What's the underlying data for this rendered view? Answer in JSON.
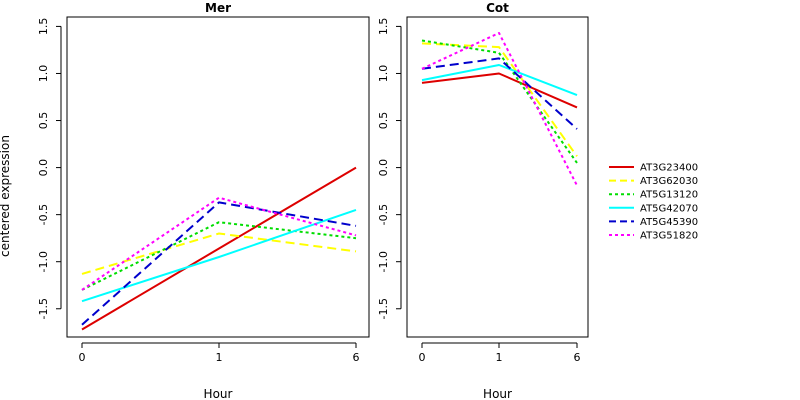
{
  "chart_data": {
    "type": "line",
    "ylabel": "centered expression",
    "xlabel": "Hour",
    "categories": [
      "0",
      "1",
      "6"
    ],
    "ylim": [
      -1.8,
      1.6
    ],
    "yticks": [
      -1.5,
      -1.0,
      -0.5,
      0.0,
      0.5,
      1.0,
      1.5
    ],
    "ytick_labels": [
      "-1.5",
      "-1.0",
      "-0.5",
      "0.0",
      "0.5",
      "1.0",
      "1.5"
    ],
    "legend_position": "right",
    "grid": false,
    "series_styles": [
      {
        "name": "AT3G23400",
        "color": "#dd0000",
        "dash": "solid"
      },
      {
        "name": "AT3G62030",
        "color": "#ffff00",
        "dash": "dashed"
      },
      {
        "name": "AT5G13120",
        "color": "#00dd00",
        "dash": "dotted"
      },
      {
        "name": "AT5G42070",
        "color": "#00ffff",
        "dash": "solid"
      },
      {
        "name": "AT5G45390",
        "color": "#0000cc",
        "dash": "dashed"
      },
      {
        "name": "AT3G51820",
        "color": "#ff00ff",
        "dash": "dotted"
      }
    ],
    "panels": [
      {
        "title": "Mer",
        "series": [
          {
            "name": "AT3G23400",
            "values": [
              -1.72,
              -0.86,
              0.0
            ]
          },
          {
            "name": "AT3G62030",
            "values": [
              -1.13,
              -0.7,
              -0.89
            ]
          },
          {
            "name": "AT5G13120",
            "values": [
              -1.3,
              -0.58,
              -0.75
            ]
          },
          {
            "name": "AT5G42070",
            "values": [
              -1.42,
              -0.95,
              -0.45
            ]
          },
          {
            "name": "AT5G45390",
            "values": [
              -1.67,
              -0.37,
              -0.62
            ]
          },
          {
            "name": "AT3G51820",
            "values": [
              -1.3,
              -0.32,
              -0.72
            ]
          }
        ]
      },
      {
        "title": "Cot",
        "series": [
          {
            "name": "AT3G23400",
            "values": [
              0.9,
              1.0,
              0.64
            ]
          },
          {
            "name": "AT3G62030",
            "values": [
              1.32,
              1.28,
              0.12
            ]
          },
          {
            "name": "AT5G13120",
            "values": [
              1.35,
              1.22,
              0.05
            ]
          },
          {
            "name": "AT5G42070",
            "values": [
              0.93,
              1.09,
              0.77
            ]
          },
          {
            "name": "AT5G45390",
            "values": [
              1.05,
              1.16,
              0.41
            ]
          },
          {
            "name": "AT3G51820",
            "values": [
              1.05,
              1.43,
              -0.19
            ]
          }
        ]
      }
    ]
  }
}
